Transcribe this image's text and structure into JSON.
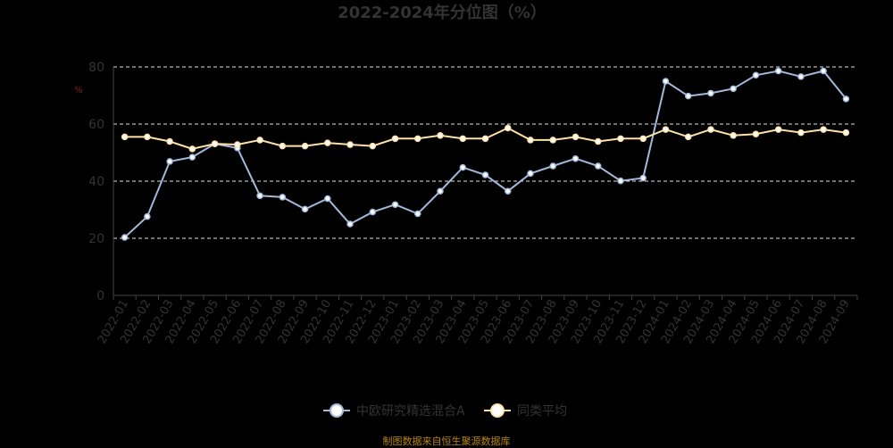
{
  "chart_data": {
    "type": "line",
    "title": "2022-2024年分位图（%）",
    "y_unit": "%",
    "ylim": [
      0,
      80
    ],
    "yticks": [
      0,
      20,
      40,
      60,
      80
    ],
    "grid": "horizontal dashed",
    "legend_position": "bottom-center",
    "categories": [
      "2022-01",
      "2022-02",
      "2022-03",
      "2022-04",
      "2022-05",
      "2022-06",
      "2022-07",
      "2022-08",
      "2022-09",
      "2022-10",
      "2022-11",
      "2022-12",
      "2023-01",
      "2023-02",
      "2023-03",
      "2023-04",
      "2023-05",
      "2023-06",
      "2023-07",
      "2023-08",
      "2023-09",
      "2023-10",
      "2023-11",
      "2023-12",
      "2024-01",
      "2024-02",
      "2024-03",
      "2024-04",
      "2024-05",
      "2024-06",
      "2024-07",
      "2024-08",
      "2024-09"
    ],
    "series": [
      {
        "name": "中欧研究精选混合A",
        "color": "#a4b8dc",
        "values": [
          20.3,
          27.6,
          46.9,
          48.4,
          53.1,
          51.6,
          34.9,
          34.4,
          30.2,
          33.9,
          25.0,
          29.2,
          31.8,
          28.6,
          36.5,
          44.8,
          42.2,
          36.5,
          42.7,
          45.3,
          47.9,
          45.3,
          40.1,
          41.1,
          75.0,
          69.8,
          70.8,
          72.4,
          77.1,
          78.6,
          76.6,
          78.6,
          68.8
        ]
      },
      {
        "name": "同类平均",
        "color": "#ffe1a8",
        "values": [
          55.5,
          55.5,
          53.9,
          51.3,
          53.1,
          52.8,
          54.4,
          52.3,
          52.3,
          53.4,
          52.8,
          52.3,
          54.9,
          54.9,
          56.0,
          54.9,
          54.9,
          58.6,
          54.4,
          54.4,
          55.5,
          53.9,
          54.9,
          54.9,
          58.1,
          55.5,
          58.1,
          56.0,
          56.5,
          58.1,
          57.0,
          58.1,
          57.0
        ]
      }
    ]
  },
  "source_note": "制图数据来自恒生聚源数据库"
}
